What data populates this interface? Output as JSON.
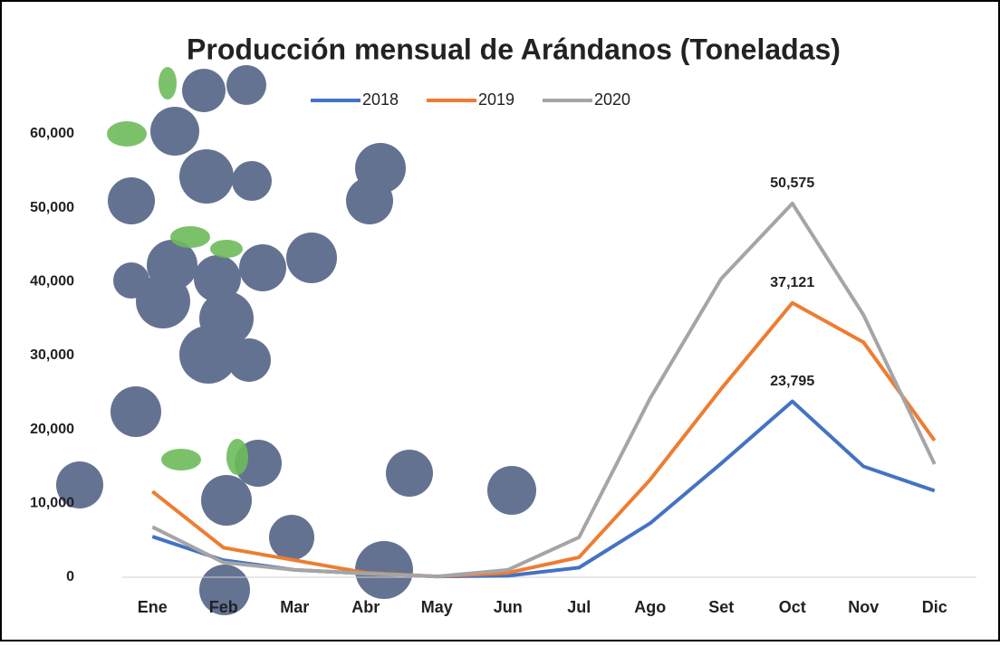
{
  "chart_data": {
    "type": "line",
    "title": "Producción mensual de Arándanos (Toneladas)",
    "categories": [
      "Ene",
      "Feb",
      "Mar",
      "Abr",
      "May",
      "Jun",
      "Jul",
      "Ago",
      "Set",
      "Oct",
      "Nov",
      "Dic"
    ],
    "series": [
      {
        "name": "2018",
        "color": "#4472c4",
        "values": [
          5500,
          2300,
          1000,
          500,
          100,
          200,
          1300,
          7300,
          15400,
          23795,
          15000,
          11700
        ],
        "value_labels": [
          null,
          null,
          null,
          null,
          null,
          null,
          null,
          null,
          null,
          "23,795",
          null,
          null
        ]
      },
      {
        "name": "2019",
        "color": "#ed7d31",
        "values": [
          11600,
          4000,
          2300,
          600,
          100,
          600,
          2700,
          13200,
          25500,
          37121,
          31800,
          18500
        ],
        "value_labels": [
          null,
          null,
          null,
          null,
          null,
          null,
          null,
          null,
          null,
          "37,121",
          null,
          null
        ]
      },
      {
        "name": "2020",
        "color": "#a5a5a5",
        "values": [
          6800,
          2000,
          1000,
          500,
          100,
          1000,
          5400,
          24200,
          40400,
          50575,
          35500,
          15300
        ],
        "value_labels": [
          null,
          null,
          null,
          null,
          null,
          null,
          null,
          null,
          null,
          "50,575",
          null,
          null
        ]
      }
    ],
    "ylim": [
      0,
      65000
    ],
    "yticks": [
      {
        "value": 0,
        "label": "0"
      },
      {
        "value": 10000,
        "label": "10,000"
      },
      {
        "value": 20000,
        "label": "20,000"
      },
      {
        "value": 30000,
        "label": "30,000"
      },
      {
        "value": 40000,
        "label": "40,000"
      },
      {
        "value": 50000,
        "label": "50,000"
      },
      {
        "value": 60000,
        "label": "60,000"
      }
    ],
    "grid": false,
    "legend": "top"
  }
}
